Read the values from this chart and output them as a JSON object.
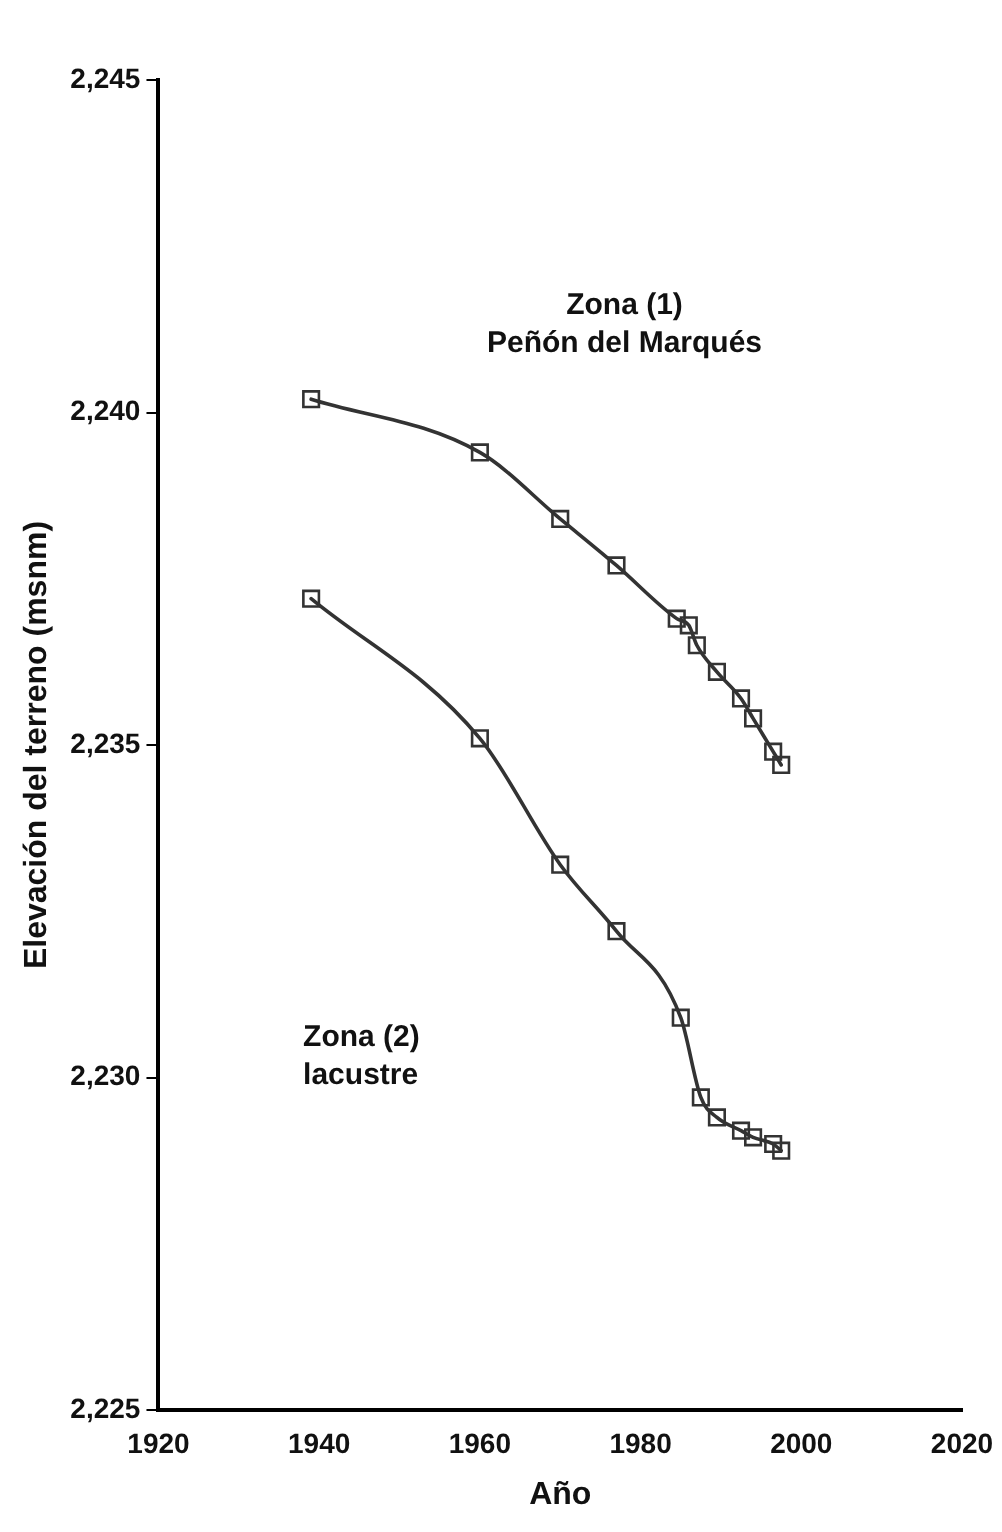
{
  "chart_data": {
    "type": "line",
    "xlabel": "Año",
    "ylabel": "Elevación del terreno (msnm)",
    "xlim": [
      1920,
      2020
    ],
    "xticks": [
      1920,
      1940,
      1960,
      1980,
      2000,
      2020
    ],
    "ylim": [
      2225,
      2245
    ],
    "yticks": [
      {
        "value": 2225,
        "label": "2,225"
      },
      {
        "value": 2230,
        "label": "2,230"
      },
      {
        "value": 2235,
        "label": "2,235"
      },
      {
        "value": 2240,
        "label": "2,240"
      },
      {
        "value": 2245,
        "label": "2,245"
      }
    ],
    "grid": false,
    "legend": false,
    "marker": "square",
    "line_style": "solid",
    "annotations": [
      "Zona (1)\nPeñón del Marqués",
      "Zona (2)\nlacustre"
    ],
    "series": [
      {
        "color": "#333333",
        "x": [
          1939,
          1960,
          1970,
          1977,
          1984.5,
          1986,
          1987,
          1989.5,
          1992.5,
          1994,
          1996.5,
          1997.5
        ],
        "values": [
          2240.2,
          2239.4,
          2238.4,
          2237.7,
          2236.9,
          2236.8,
          2236.5,
          2236.1,
          2235.7,
          2235.4,
          2234.9,
          2234.7
        ]
      },
      {
        "color": "#333333",
        "x": [
          1939,
          1960,
          1970,
          1977,
          1985,
          1987.5,
          1989.5,
          1992.5,
          1994,
          1996.5,
          1997.5
        ],
        "values": [
          2237.2,
          2235.1,
          2233.2,
          2232.2,
          2230.9,
          2229.7,
          2229.4,
          2229.2,
          2229.1,
          2229.0,
          2228.9
        ]
      }
    ]
  }
}
